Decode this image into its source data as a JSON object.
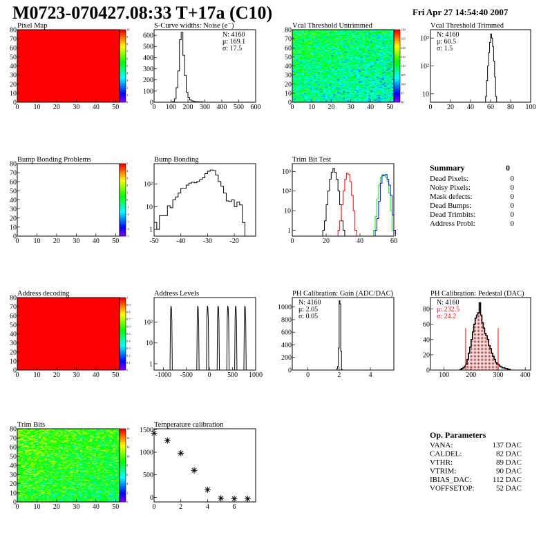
{
  "header": {
    "title": "M0723-070427.08:33 T+17a (C10)",
    "date": "Fri Apr 27 14:54:40 2007"
  },
  "summary": {
    "title": "Summary",
    "total": "0",
    "rows": [
      {
        "label": "Dead Pixels:",
        "value": "0"
      },
      {
        "label": "Noisy Pixels:",
        "value": "0"
      },
      {
        "label": "Mask defects:",
        "value": "0"
      },
      {
        "label": "Dead Bumps:",
        "value": "0"
      },
      {
        "label": "Dead Trimbits:",
        "value": "0"
      },
      {
        "label": "Address Probl:",
        "value": "0"
      }
    ]
  },
  "op_parameters": {
    "title": "Op. Parameters",
    "rows": [
      {
        "label": "VANA:",
        "value": "137 DAC"
      },
      {
        "label": "CALDEL:",
        "value": "82 DAC"
      },
      {
        "label": "VTHR:",
        "value": "89 DAC"
      },
      {
        "label": "VTRIM:",
        "value": "90 DAC"
      },
      {
        "label": "IBIAS_DAC:",
        "value": "112 DAC"
      },
      {
        "label": "VOFFSETOP:",
        "value": "52 DAC"
      }
    ]
  },
  "colors": {
    "line": "#000000",
    "highlight": "#ff0000",
    "trim_red": "#ff0000",
    "trim_green": "#00ff00",
    "trim_blue": "#0000ff"
  },
  "chart_data": [
    {
      "id": "pixel_map",
      "type": "heatmap",
      "title": "Pixel Map",
      "xlim": [
        0,
        52
      ],
      "ylim": [
        0,
        80
      ],
      "zlim": [
        0,
        10
      ],
      "fill": "uniform",
      "z": 10,
      "xticks": [
        "0",
        "10",
        "20",
        "30",
        "40",
        "50"
      ],
      "yticks": [
        "0",
        "10",
        "20",
        "30",
        "40",
        "50",
        "60",
        "70",
        "80"
      ],
      "zticks": [
        "0",
        "1",
        "2",
        "3",
        "4",
        "5",
        "6",
        "7",
        "8",
        "9",
        "10"
      ]
    },
    {
      "id": "noise",
      "type": "histogram",
      "title": "S-Curve widths: Noise (e⁻)",
      "xlim": [
        0,
        600
      ],
      "ylim": [
        0,
        650
      ],
      "xticks": [
        "0",
        "100",
        "200",
        "300",
        "400",
        "500",
        "600"
      ],
      "yticks": [
        "0",
        "100",
        "200",
        "300",
        "400",
        "500",
        "600"
      ],
      "stats": [
        "N: 4160",
        "μ: 169.1",
        "σ: 17.5"
      ],
      "series": [
        {
          "start": 100,
          "width": 10,
          "values": [
            2,
            5,
            30,
            130,
            280,
            560,
            625,
            420,
            240,
            90,
            40,
            20,
            12,
            8,
            5,
            4,
            3,
            2,
            2
          ]
        }
      ]
    },
    {
      "id": "vcal_untrimmed",
      "type": "heatmap",
      "title": "Vcal Threshold Untrimmed",
      "xlim": [
        0,
        52
      ],
      "ylim": [
        0,
        80
      ],
      "zlim": [
        88,
        138
      ],
      "fill": "noise",
      "z": 110,
      "xticks": [
        "0",
        "10",
        "20",
        "30",
        "40",
        "50"
      ],
      "yticks": [
        "0",
        "10",
        "20",
        "30",
        "40",
        "50",
        "60",
        "70",
        "80"
      ],
      "zticks": [
        "90",
        "95",
        "100",
        "105",
        "110",
        "115",
        "120",
        "125",
        "130"
      ]
    },
    {
      "id": "vcal_trimmed",
      "type": "histogram",
      "title": "Vcal Threshold Trimmed",
      "xlim": [
        0,
        100
      ],
      "ylim": [
        5,
        2000
      ],
      "ylog": true,
      "xticks": [
        "0",
        "20",
        "40",
        "60",
        "80",
        "100"
      ],
      "ylogticks": [
        {
          "v": 10,
          "label": "10"
        },
        {
          "v": 100,
          "label": "10²"
        },
        {
          "v": 1000,
          "label": "10³"
        }
      ],
      "stats": [
        "N: 4160",
        "μ: 60.5",
        "σ:  1.5"
      ],
      "series": [
        {
          "start": 55,
          "width": 1,
          "values": [
            8,
            30,
            100,
            300,
            700,
            1400,
            1000,
            500,
            150,
            40,
            8
          ]
        }
      ]
    },
    {
      "id": "bump_problems",
      "type": "heatmap",
      "title": "Bump Bonding Problems",
      "xlim": [
        0,
        52
      ],
      "ylim": [
        0,
        80
      ],
      "zlim": [
        -5,
        5
      ],
      "fill": "empty",
      "xticks": [
        "0",
        "10",
        "20",
        "30",
        "40",
        "50"
      ],
      "yticks": [
        "0",
        "10",
        "20",
        "30",
        "40",
        "50",
        "60",
        "70",
        "80"
      ],
      "zticks": [
        "-5",
        "-4",
        "-3",
        "-2",
        "-1",
        "0",
        "1",
        "2",
        "3",
        "4",
        "5"
      ]
    },
    {
      "id": "bump_bonding",
      "type": "histogram",
      "title": "Bump Bonding",
      "xlim": [
        -50,
        -12
      ],
      "ylim": [
        0.5,
        800
      ],
      "ylog": true,
      "xticks": [
        {
          "v": -50,
          "label": "-50"
        },
        {
          "v": -40,
          "label": "-40"
        },
        {
          "v": -30,
          "label": "-30"
        },
        {
          "v": -20,
          "label": "-20"
        }
      ],
      "ylogticks": [
        {
          "v": 1,
          "label": "1"
        },
        {
          "v": 10,
          "label": "10"
        },
        {
          "v": 100,
          "label": "10²"
        }
      ],
      "series": [
        {
          "start": -50,
          "width": 1,
          "values": [
            2,
            1,
            4,
            4,
            4,
            11,
            9,
            20,
            27,
            40,
            65,
            65,
            90,
            110,
            120,
            115,
            130,
            155,
            190,
            290,
            370,
            420,
            400,
            250,
            130,
            80,
            40,
            18,
            17,
            20,
            10,
            16,
            12,
            2
          ]
        }
      ]
    },
    {
      "id": "trim_bit_test",
      "type": "histogram",
      "title": "Trim Bit Test",
      "xlim": [
        0,
        60
      ],
      "ylim": [
        0.5,
        2500
      ],
      "ylog": true,
      "xticks": [
        "0",
        "20",
        "40",
        "60"
      ],
      "ylogticks": [
        {
          "v": 1,
          "label": "1"
        },
        {
          "v": 10,
          "label": "10"
        },
        {
          "v": 100,
          "label": "10²"
        },
        {
          "v": 1000,
          "label": "10³"
        }
      ],
      "series": [
        {
          "color": "#000000",
          "start": 18,
          "width": 1,
          "values": [
            1,
            3,
            20,
            100,
            400,
            900,
            1400,
            900,
            400,
            100,
            20,
            3,
            1
          ]
        },
        {
          "color": "#ff0000",
          "start": 27,
          "width": 1,
          "values": [
            1,
            3,
            20,
            100,
            400,
            800,
            700,
            300,
            60,
            10,
            1
          ]
        },
        {
          "color": "#00ff00",
          "start": 48,
          "width": 1,
          "values": [
            1,
            5,
            40,
            200,
            500,
            700,
            600,
            500,
            300,
            80,
            10,
            1
          ]
        },
        {
          "color": "#0000ff",
          "start": 49,
          "width": 1,
          "values": [
            1,
            4,
            30,
            250,
            600,
            650,
            700,
            400,
            200,
            60,
            6,
            1
          ]
        }
      ]
    },
    {
      "id": "address_decoding",
      "type": "heatmap",
      "title": "Address decoding",
      "xlim": [
        0,
        52
      ],
      "ylim": [
        0,
        80
      ],
      "zlim": [
        0,
        1
      ],
      "fill": "uniform",
      "z": 1,
      "xticks": [
        "0",
        "10",
        "20",
        "30",
        "40",
        "50"
      ],
      "yticks": [
        "0",
        "10",
        "20",
        "30",
        "40",
        "50",
        "60",
        "70",
        "80"
      ],
      "zticks": [
        "0",
        "0.1",
        "0.2",
        "0.3",
        "0.4",
        "0.5",
        "0.6",
        "0.7",
        "0.8",
        "0.9",
        "1"
      ]
    },
    {
      "id": "address_levels",
      "type": "spikes",
      "title": "Address Levels",
      "xlim": [
        -1200,
        1000
      ],
      "ylim": [
        0.5,
        1500
      ],
      "ylog": true,
      "xticks": [
        {
          "v": -1000,
          "label": "-1000"
        },
        {
          "v": -500,
          "label": "-500"
        },
        {
          "v": 0,
          "label": "0"
        },
        {
          "v": 500,
          "label": "500"
        },
        {
          "v": 1000,
          "label": "1000"
        }
      ],
      "ylogticks": [
        {
          "v": 1,
          "label": "1"
        },
        {
          "v": 10,
          "label": "10"
        },
        {
          "v": 100,
          "label": "10²"
        }
      ],
      "peaks": [
        -830,
        -250,
        -40,
        190,
        400,
        570,
        770
      ],
      "peak_height": 600
    },
    {
      "id": "ph_gain",
      "type": "histogram",
      "title": "PH Calibration: Gain (ADC/DAC)",
      "xlim": [
        -1,
        5.5
      ],
      "ylim": [
        0,
        1150
      ],
      "xticks": [
        {
          "v": 0,
          "label": "0"
        },
        {
          "v": 2,
          "label": "2"
        },
        {
          "v": 4,
          "label": "4"
        }
      ],
      "yticks": [
        {
          "v": 0,
          "label": "0"
        },
        {
          "v": 200,
          "label": "200"
        },
        {
          "v": 400,
          "label": "400"
        },
        {
          "v": 600,
          "label": "600"
        },
        {
          "v": 800,
          "label": "800"
        },
        {
          "v": 1000,
          "label": "1000"
        }
      ],
      "stats": [
        "N: 4160",
        "μ: 2.05",
        "σ: 0.05"
      ],
      "series": [
        {
          "start": 1.85,
          "width": 0.05,
          "values": [
            20,
            60,
            350,
            1100,
            1050,
            300,
            10
          ]
        }
      ]
    },
    {
      "id": "ph_pedestal",
      "type": "histogram",
      "title": "PH Calibration: Pedestal (DAC)",
      "xlim": [
        50,
        420
      ],
      "ylim": [
        0,
        95
      ],
      "xticks": [
        {
          "v": 100,
          "label": "100"
        },
        {
          "v": 200,
          "label": "200"
        },
        {
          "v": 300,
          "label": "300"
        },
        {
          "v": 400,
          "label": "400"
        }
      ],
      "yticks": [
        {
          "v": 0,
          "label": "0"
        },
        {
          "v": 20,
          "label": "20"
        },
        {
          "v": 40,
          "label": "40"
        },
        {
          "v": 60,
          "label": "60"
        },
        {
          "v": 80,
          "label": "80"
        }
      ],
      "stats": [
        "N: 4160",
        "μ: 232.5",
        "σ: 24.2"
      ],
      "stats_colors": [
        "#000000",
        "#ff0000",
        "#ff0000"
      ],
      "fill_range": [
        180,
        300
      ],
      "cut_lines": [
        180,
        300
      ],
      "cut_height": 55,
      "series": [
        {
          "start": 160,
          "width": 5,
          "values": [
            1,
            2,
            3,
            5,
            8,
            14,
            22,
            30,
            40,
            50,
            60,
            68,
            72,
            75,
            88,
            72,
            62,
            55,
            48,
            45,
            40,
            32,
            28,
            22,
            18,
            14,
            10,
            8,
            7,
            5,
            4,
            3,
            3,
            2,
            2,
            1,
            1
          ]
        }
      ]
    },
    {
      "id": "trim_bits",
      "type": "heatmap",
      "title": "Trim Bits",
      "xlim": [
        0,
        52
      ],
      "ylim": [
        0,
        80
      ],
      "zlim": [
        0,
        16
      ],
      "fill": "noise",
      "z": 9,
      "xticks": [
        "0",
        "10",
        "20",
        "30",
        "40",
        "50"
      ],
      "yticks": [
        "0",
        "10",
        "20",
        "30",
        "40",
        "50",
        "60",
        "70",
        "80"
      ],
      "zticks": [
        "0",
        "2",
        "4",
        "6",
        "8",
        "10",
        "12",
        "14",
        "16"
      ]
    },
    {
      "id": "temperature",
      "type": "scatter",
      "title": "Temperature calibration",
      "xlim": [
        0,
        7.6
      ],
      "ylim": [
        -100,
        1520
      ],
      "xticks": [
        {
          "v": 0,
          "label": "0"
        },
        {
          "v": 2,
          "label": "2"
        },
        {
          "v": 4,
          "label": "4"
        },
        {
          "v": 6,
          "label": "6"
        }
      ],
      "yticks": [
        {
          "v": 0,
          "label": "0"
        },
        {
          "v": 500,
          "label": "500"
        },
        {
          "v": 1000,
          "label": "1000"
        },
        {
          "v": 1500,
          "label": "1500"
        }
      ],
      "x": [
        0,
        1,
        2,
        3,
        4,
        5,
        6,
        7
      ],
      "y": [
        1420,
        1260,
        980,
        600,
        170,
        -20,
        -30,
        -30
      ]
    }
  ]
}
